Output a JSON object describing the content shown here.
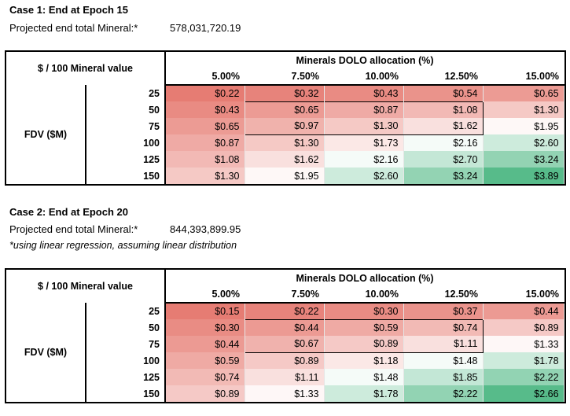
{
  "cases": [
    {
      "heading": "Case 1: End at Epoch 15",
      "projected_label": "Projected end total Mineral:*",
      "projected_value": "578,031,720.19",
      "note": "",
      "table": {
        "corner_label": "$ / 100 Mineral value",
        "alloc_title": "Minerals DOLO allocation (%)",
        "row_group_label": "FDV ($M)",
        "columns": [
          "5.00%",
          "7.50%",
          "10.00%",
          "12.50%",
          "15.00%"
        ],
        "rows": [
          {
            "fdv": "25",
            "cells": [
              "$0.22",
              "$0.32",
              "$0.43",
              "$0.54",
              "$0.65"
            ]
          },
          {
            "fdv": "50",
            "cells": [
              "$0.43",
              "$0.65",
              "$0.87",
              "$1.08",
              "$1.30"
            ]
          },
          {
            "fdv": "75",
            "cells": [
              "$0.65",
              "$0.97",
              "$1.30",
              "$1.62",
              "$1.95"
            ]
          },
          {
            "fdv": "100",
            "cells": [
              "$0.87",
              "$1.30",
              "$1.73",
              "$2.16",
              "$2.60"
            ]
          },
          {
            "fdv": "125",
            "cells": [
              "$1.08",
              "$1.62",
              "$2.16",
              "$2.70",
              "$3.24"
            ]
          },
          {
            "fdv": "150",
            "cells": [
              "$1.30",
              "$1.95",
              "$2.60",
              "$3.24",
              "$3.89"
            ]
          }
        ]
      }
    },
    {
      "heading": "Case 2: End at Epoch 20",
      "projected_label": "Projected end total Mineral:*",
      "projected_value": "844,393,899.95",
      "note": "*using linear regression, assuming linear distribution",
      "table": {
        "corner_label": "$ / 100 Mineral value",
        "alloc_title": "Minerals DOLO allocation (%)",
        "row_group_label": "FDV ($M)",
        "columns": [
          "5.00%",
          "7.50%",
          "10.00%",
          "12.50%",
          "15.00%"
        ],
        "rows": [
          {
            "fdv": "25",
            "cells": [
              "$0.15",
              "$0.22",
              "$0.30",
              "$0.37",
              "$0.44"
            ]
          },
          {
            "fdv": "50",
            "cells": [
              "$0.30",
              "$0.44",
              "$0.59",
              "$0.74",
              "$0.89"
            ]
          },
          {
            "fdv": "75",
            "cells": [
              "$0.44",
              "$0.67",
              "$0.89",
              "$1.11",
              "$1.33"
            ]
          },
          {
            "fdv": "100",
            "cells": [
              "$0.59",
              "$0.89",
              "$1.18",
              "$1.48",
              "$1.78"
            ]
          },
          {
            "fdv": "125",
            "cells": [
              "$0.74",
              "$1.11",
              "$1.48",
              "$1.85",
              "$2.22"
            ]
          },
          {
            "fdv": "150",
            "cells": [
              "$0.89",
              "$1.33",
              "$1.78",
              "$2.22",
              "$2.66"
            ]
          }
        ]
      }
    }
  ],
  "colors": {
    "scale_low": "#e67c73",
    "scale_mid": "#ffffff",
    "scale_high": "#57bb8a"
  }
}
